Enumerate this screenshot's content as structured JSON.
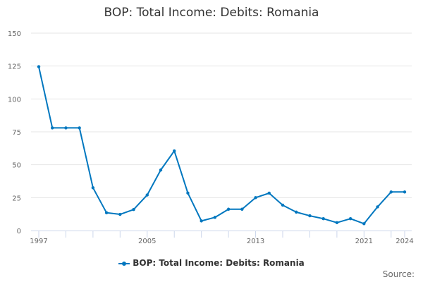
{
  "chart_data": {
    "type": "line",
    "title": "BOP: Total Income: Debits: Romania",
    "x": [
      1997,
      1998,
      1999,
      2000,
      2001,
      2002,
      2003,
      2004,
      2005,
      2006,
      2007,
      2008,
      2009,
      2010,
      2011,
      2012,
      2013,
      2014,
      2015,
      2016,
      2017,
      2018,
      2019,
      2020,
      2021,
      2022,
      2023,
      2024
    ],
    "series": [
      {
        "name": "BOP: Total Income: Debits: Romania",
        "color": "#0077bf",
        "values": [
          124.5,
          78,
          78,
          78,
          32.5,
          13.5,
          12.3,
          16,
          27,
          46,
          60.5,
          28.5,
          7.3,
          10,
          16.2,
          16.2,
          25,
          28.4,
          19.3,
          14,
          11.2,
          9,
          6,
          9,
          5.2,
          18,
          29.3,
          29.3
        ]
      }
    ],
    "xticks": [
      1997,
      2005,
      2013,
      2021,
      2024
    ],
    "yticks": [
      0,
      25,
      50,
      75,
      100,
      125,
      150
    ],
    "ylim": [
      0,
      150
    ],
    "xlim": [
      1997,
      2024
    ],
    "grid": true,
    "legend": "bottom",
    "source_label": "Source:"
  }
}
